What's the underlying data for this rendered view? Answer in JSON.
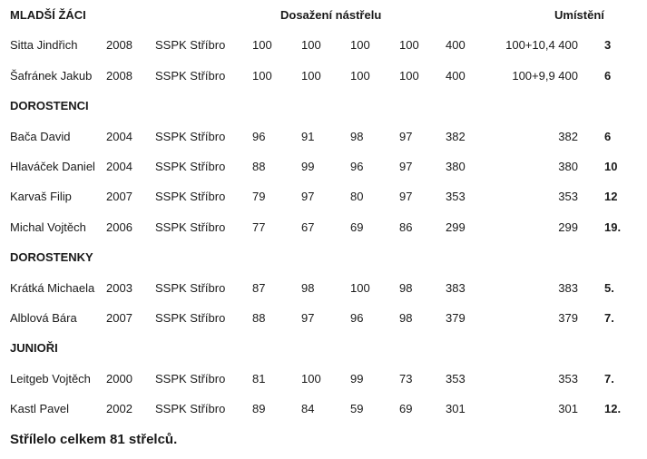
{
  "header": {
    "category": "MLADŠÍ ŽÁCI",
    "scores_label": "Dosažení nástřelu",
    "place_label": "Umístění"
  },
  "sections": [
    {
      "title": "MLADŠÍ ŽÁCI",
      "rows": [
        {
          "name": "Sitta Jindřich",
          "year": "2008",
          "club": "SSPK Stříbro",
          "s1": "100",
          "s2": "100",
          "s3": "100",
          "s4": "100",
          "total": "400",
          "final": "100+10,4 400",
          "place": "3"
        },
        {
          "name": "Šafránek Jakub",
          "year": "2008",
          "club": "SSPK Stříbro",
          "s1": "100",
          "s2": "100",
          "s3": "100",
          "s4": "100",
          "total": "400",
          "final": "100+9,9 400",
          "place": "6"
        }
      ]
    },
    {
      "title": "DOROSTENCI",
      "rows": [
        {
          "name": "Bača David",
          "year": "2004",
          "club": "SSPK Stříbro",
          "s1": "96",
          "s2": "91",
          "s3": "98",
          "s4": "97",
          "total": "382",
          "final": "382",
          "place": "6"
        },
        {
          "name": "Hlaváček Daniel",
          "year": "2004",
          "club": "SSPK Stříbro",
          "s1": "88",
          "s2": "99",
          "s3": "96",
          "s4": "97",
          "total": "380",
          "final": "380",
          "place": "10"
        },
        {
          "name": "Karvaš Filip",
          "year": "2007",
          "club": "SSPK Stříbro",
          "s1": "79",
          "s2": "97",
          "s3": "80",
          "s4": "97",
          "total": "353",
          "final": "353",
          "place": "12"
        },
        {
          "name": "Michal Vojtěch",
          "year": "2006",
          "club": "SSPK Stříbro",
          "s1": "77",
          "s2": "67",
          "s3": "69",
          "s4": "86",
          "total": "299",
          "final": "299",
          "place": "19."
        }
      ]
    },
    {
      "title": "DOROSTENKY",
      "rows": [
        {
          "name": "Krátká Michaela",
          "year": "2003",
          "club": "SSPK Stříbro",
          "s1": "87",
          "s2": "98",
          "s3": "100",
          "s4": "98",
          "total": "383",
          "final": "383",
          "place": "5."
        },
        {
          "name": "Alblová Bára",
          "year": "2007",
          "club": "SSPK Stříbro",
          "s1": "88",
          "s2": "97",
          "s3": "96",
          "s4": "98",
          "total": "379",
          "final": "379",
          "place": "7."
        }
      ]
    },
    {
      "title": "JUNIOŘI",
      "rows": [
        {
          "name": "Leitgeb Vojtěch",
          "year": "2000",
          "club": "SSPK Stříbro",
          "s1": "81",
          "s2": "100",
          "s3": "99",
          "s4": "73",
          "total": "353",
          "final": "353",
          "place": "7."
        },
        {
          "name": "Kastl Pavel",
          "year": "2002",
          "club": "SSPK Stříbro",
          "s1": "89",
          "s2": "84",
          "s3": "59",
          "s4": "69",
          "total": "301",
          "final": "301",
          "place": "12."
        }
      ]
    }
  ],
  "footer": "Střílelo celkem 81 střelců."
}
